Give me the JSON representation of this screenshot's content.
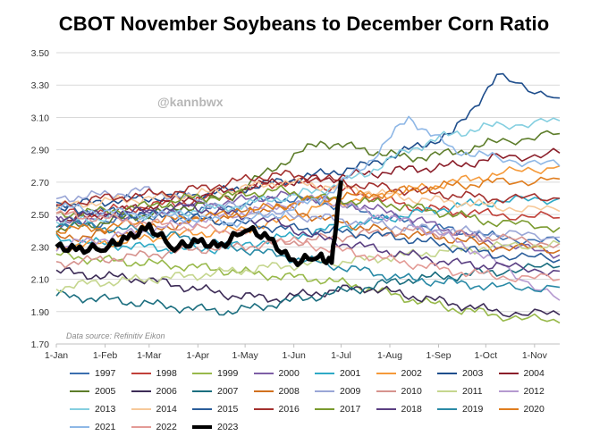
{
  "title": "CBOT November Soybeans to December Corn Ratio",
  "chart_data": {
    "type": "line",
    "title": "CBOT November Soybeans to December Corn Ratio",
    "watermark": "@kannbwx",
    "source": "Data source: Refinitiv Eikon",
    "ylim": [
      1.7,
      3.5
    ],
    "yticks": [
      "3.50",
      "3.30",
      "3.10",
      "2.90",
      "2.70",
      "2.50",
      "2.30",
      "2.10",
      "1.90",
      "1.70"
    ],
    "xticks": [
      "1-Jan",
      "1-Feb",
      "1-Mar",
      "1-Apr",
      "1-May",
      "1-Jun",
      "1-Jul",
      "1-Aug",
      "1-Sep",
      "1-Oct",
      "1-Nov"
    ],
    "xtick_days": [
      0,
      31,
      59,
      90,
      120,
      151,
      181,
      212,
      243,
      273,
      304
    ],
    "xlim_days": [
      0,
      320
    ],
    "series": [
      {
        "name": "1997",
        "color": "#3b6faf",
        "values": [
          2.42,
          2.45,
          2.48,
          2.52,
          2.55,
          2.6,
          2.58,
          2.52,
          2.45,
          2.4,
          2.36,
          2.33
        ]
      },
      {
        "name": "1998",
        "color": "#c1413a",
        "values": [
          2.5,
          2.52,
          2.55,
          2.58,
          2.62,
          2.7,
          2.68,
          2.62,
          2.55,
          2.52,
          2.5,
          2.48
        ]
      },
      {
        "name": "1999",
        "color": "#98b94b",
        "values": [
          2.25,
          2.22,
          2.2,
          2.18,
          2.15,
          2.12,
          2.1,
          2.05,
          1.98,
          1.92,
          1.88,
          1.83
        ]
      },
      {
        "name": "2000",
        "color": "#7e5fa6",
        "values": [
          2.45,
          2.48,
          2.5,
          2.55,
          2.58,
          2.62,
          2.6,
          2.55,
          2.48,
          2.4,
          2.32,
          2.25
        ]
      },
      {
        "name": "2001",
        "color": "#2faac6",
        "values": [
          2.35,
          2.32,
          2.3,
          2.28,
          2.3,
          2.35,
          2.4,
          2.45,
          2.5,
          2.55,
          2.58,
          2.6
        ]
      },
      {
        "name": "2002",
        "color": "#f59a3a",
        "values": [
          2.3,
          2.32,
          2.35,
          2.38,
          2.4,
          2.45,
          2.55,
          2.6,
          2.65,
          2.7,
          2.75,
          2.8
        ]
      },
      {
        "name": "2003",
        "color": "#1f4e8c",
        "values": [
          2.55,
          2.58,
          2.6,
          2.62,
          2.65,
          2.7,
          2.75,
          2.8,
          2.9,
          3.0,
          3.35,
          3.22
        ]
      },
      {
        "name": "2004",
        "color": "#8b1f2a",
        "values": [
          2.45,
          2.5,
          2.55,
          2.6,
          2.65,
          2.7,
          2.72,
          2.75,
          2.78,
          2.8,
          2.85,
          2.88
        ]
      },
      {
        "name": "2005",
        "color": "#5d7d2a",
        "values": [
          2.4,
          2.45,
          2.5,
          2.55,
          2.62,
          2.8,
          2.95,
          2.9,
          2.85,
          2.88,
          2.95,
          3.0
        ]
      },
      {
        "name": "2006",
        "color": "#3d2c57",
        "values": [
          2.15,
          2.12,
          2.1,
          2.05,
          2.0,
          1.98,
          2.02,
          2.05,
          2.0,
          1.95,
          1.9,
          1.88
        ]
      },
      {
        "name": "2007",
        "color": "#1b6e7f",
        "values": [
          2.0,
          1.98,
          1.95,
          1.92,
          1.9,
          1.95,
          2.0,
          2.05,
          2.1,
          2.12,
          2.15,
          2.18
        ]
      },
      {
        "name": "2008",
        "color": "#d1711f",
        "values": [
          2.35,
          2.38,
          2.4,
          2.45,
          2.5,
          2.55,
          2.48,
          2.42,
          2.38,
          2.35,
          2.3,
          2.28
        ]
      },
      {
        "name": "2009",
        "color": "#9aa6d6",
        "values": [
          2.6,
          2.62,
          2.65,
          2.6,
          2.55,
          2.5,
          2.48,
          2.45,
          2.42,
          2.4,
          2.38,
          2.36
        ]
      },
      {
        "name": "2010",
        "color": "#d6938e",
        "values": [
          2.2,
          2.22,
          2.25,
          2.28,
          2.3,
          2.32,
          2.35,
          2.38,
          2.4,
          2.38,
          2.35,
          2.32
        ]
      },
      {
        "name": "2011",
        "color": "#c5d68e",
        "values": [
          2.05,
          2.08,
          2.1,
          2.12,
          2.15,
          2.18,
          2.2,
          2.22,
          2.25,
          2.28,
          2.3,
          2.32
        ]
      },
      {
        "name": "2012",
        "color": "#b59ad0",
        "values": [
          2.3,
          2.35,
          2.4,
          2.45,
          2.5,
          2.55,
          2.6,
          2.52,
          2.45,
          2.35,
          2.2,
          1.97
        ]
      },
      {
        "name": "2013",
        "color": "#85cfe0",
        "values": [
          2.45,
          2.48,
          2.5,
          2.52,
          2.55,
          2.6,
          2.65,
          2.75,
          2.9,
          3.0,
          3.05,
          3.08
        ]
      },
      {
        "name": "2014",
        "color": "#f7c99a",
        "values": [
          2.55,
          2.58,
          2.6,
          2.62,
          2.65,
          2.7,
          2.68,
          2.65,
          2.6,
          2.58,
          2.55,
          2.52
        ]
      },
      {
        "name": "2015",
        "color": "#2a5d9a",
        "values": [
          2.55,
          2.52,
          2.5,
          2.48,
          2.45,
          2.42,
          2.4,
          2.38,
          2.35,
          2.3,
          2.25,
          2.22
        ]
      },
      {
        "name": "2016",
        "color": "#a3302e",
        "values": [
          2.55,
          2.6,
          2.62,
          2.65,
          2.7,
          2.75,
          2.72,
          2.68,
          2.65,
          2.62,
          2.6,
          2.6
        ]
      },
      {
        "name": "2017",
        "color": "#7a9a2e",
        "values": [
          2.5,
          2.52,
          2.55,
          2.6,
          2.62,
          2.65,
          2.6,
          2.58,
          2.55,
          2.5,
          2.45,
          2.42
        ]
      },
      {
        "name": "2018",
        "color": "#5a3f82",
        "values": [
          2.48,
          2.5,
          2.52,
          2.55,
          2.5,
          2.45,
          2.35,
          2.3,
          2.25,
          2.2,
          2.18,
          2.15
        ]
      },
      {
        "name": "2019",
        "color": "#2a8aa6",
        "values": [
          2.45,
          2.42,
          2.4,
          2.35,
          2.3,
          2.25,
          2.2,
          2.15,
          2.1,
          2.08,
          2.05,
          2.05
        ]
      },
      {
        "name": "2020",
        "color": "#e07e1f",
        "values": [
          2.4,
          2.42,
          2.45,
          2.48,
          2.5,
          2.55,
          2.6,
          2.62,
          2.65,
          2.68,
          2.7,
          2.72
        ]
      },
      {
        "name": "2021",
        "color": "#8eb7e6",
        "values": [
          2.55,
          2.52,
          2.5,
          2.48,
          2.45,
          2.5,
          2.6,
          2.8,
          3.1,
          2.9,
          2.85,
          2.8
        ]
      },
      {
        "name": "2022",
        "color": "#e39b96",
        "values": [
          2.5,
          2.48,
          2.45,
          2.42,
          2.4,
          2.35,
          2.3,
          2.25,
          2.2,
          2.15,
          2.12,
          2.1
        ]
      },
      {
        "name": "2023",
        "color": "#000000",
        "width": 5,
        "x": [
          0,
          15,
          31,
          45,
          59,
          75,
          90,
          105,
          120,
          135,
          151,
          165,
          175,
          181
        ],
        "values": [
          2.3,
          2.28,
          2.3,
          2.35,
          2.42,
          2.3,
          2.33,
          2.3,
          2.42,
          2.35,
          2.2,
          2.25,
          2.2,
          2.71
        ]
      }
    ]
  }
}
